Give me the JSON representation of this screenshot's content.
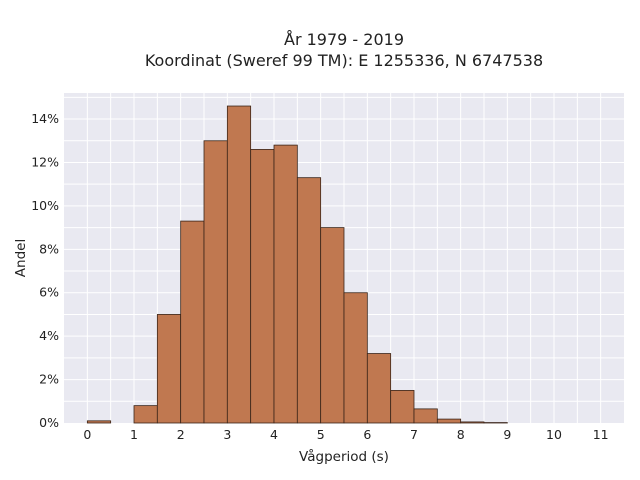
{
  "chart_data": {
    "type": "bar",
    "title_line1": "År 1979 - 2019",
    "title_line2": "Koordinat (Sweref 99 TM): E 1255336, N 6747538",
    "xlabel": "Vågperiod (s)",
    "ylabel": "Andel",
    "xlim": [
      -0.5,
      11.5
    ],
    "ylim": [
      0,
      15.2
    ],
    "bin_width": 0.5,
    "x_ticks": [
      "0",
      "1",
      "2",
      "3",
      "4",
      "5",
      "6",
      "7",
      "8",
      "9",
      "10",
      "11"
    ],
    "y_ticks": [
      "0%",
      "2%",
      "4%",
      "6%",
      "8%",
      "10%",
      "12%",
      "14%"
    ],
    "bins": [
      {
        "x": 0.0,
        "value": 0.1
      },
      {
        "x": 0.5,
        "value": 0.0
      },
      {
        "x": 1.0,
        "value": 0.8
      },
      {
        "x": 1.5,
        "value": 5.0
      },
      {
        "x": 2.0,
        "value": 9.3
      },
      {
        "x": 2.5,
        "value": 13.0
      },
      {
        "x": 3.0,
        "value": 14.6
      },
      {
        "x": 3.5,
        "value": 12.6
      },
      {
        "x": 4.0,
        "value": 12.8
      },
      {
        "x": 4.5,
        "value": 11.3
      },
      {
        "x": 5.0,
        "value": 9.0
      },
      {
        "x": 5.5,
        "value": 6.0
      },
      {
        "x": 6.0,
        "value": 3.2
      },
      {
        "x": 6.5,
        "value": 1.5
      },
      {
        "x": 7.0,
        "value": 0.65
      },
      {
        "x": 7.5,
        "value": 0.18
      },
      {
        "x": 8.0,
        "value": 0.05
      },
      {
        "x": 8.5,
        "value": 0.02
      }
    ],
    "grid": true,
    "background": "#e9e9f1",
    "bar_color": "#c07850"
  }
}
